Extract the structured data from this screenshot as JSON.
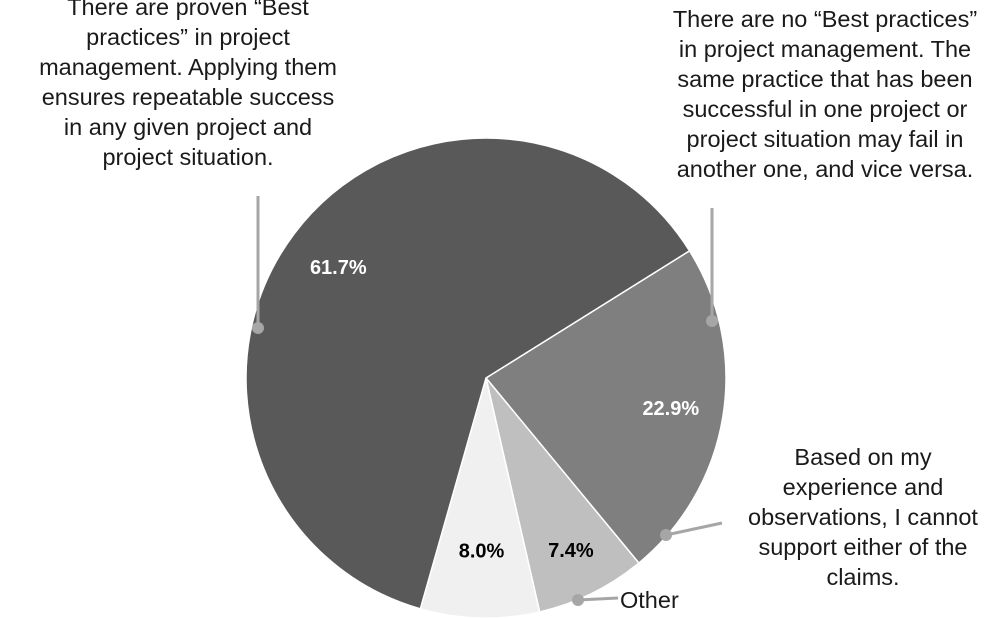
{
  "chart_data": {
    "type": "pie",
    "title": "",
    "start_angle_deg": 58,
    "direction": "clockwise",
    "slices": [
      {
        "label": "There are no “Best practices”\nin project management. The\nsame practice that has been\nsuccessful in one project or\nproject situation may fail in\nanother one, and vice versa.",
        "value": 22.9,
        "display": "22.9%",
        "color": "#7f7f7f",
        "data_label_color": "#ffffff"
      },
      {
        "label": "Based on my\nexperience and\nobservations, I cannot\nsupport either of the\nclaims.",
        "value": 7.4,
        "display": "7.4%",
        "color": "#bfbfbf",
        "data_label_color": "#000000"
      },
      {
        "label": "Other",
        "value": 8.0,
        "display": "8.0%",
        "color": "#f0f0f0",
        "data_label_color": "#000000"
      },
      {
        "label": "There are proven “Best\npractices” in project\nmanagement. Applying them\nensures repeatable success\nin any given project and\nproject situation.",
        "value": 61.7,
        "display": "61.7%",
        "color": "#595959",
        "data_label_color": "#ffffff"
      }
    ],
    "legend": "none",
    "callout_line_color": "#a6a6a6"
  }
}
